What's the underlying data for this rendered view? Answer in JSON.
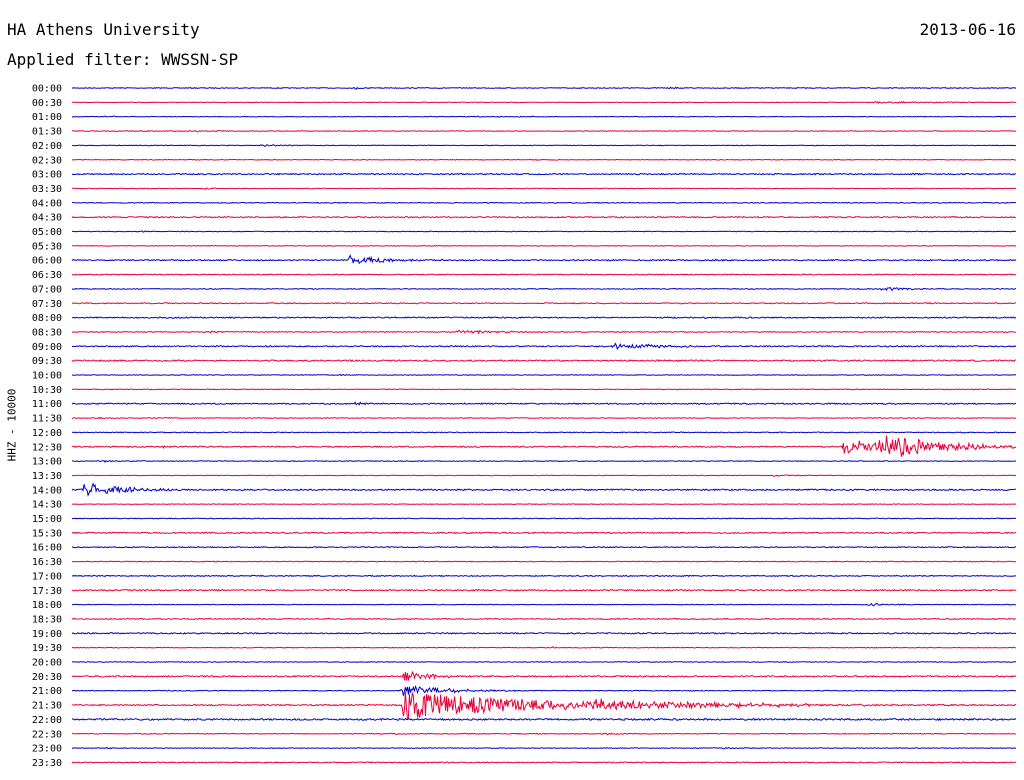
{
  "header": {
    "station": "HA Athens University",
    "date": "2013-06-16",
    "filter_label": "Applied filter: WWSSN-SP",
    "channel": "HHZ - 10000"
  },
  "colors": {
    "even_row": "#0000cc",
    "odd_row": "#e8003a"
  },
  "chart_data": {
    "type": "line",
    "title": "HA Athens University",
    "date": "2013-06-16",
    "filter": "WWSSN-SP",
    "ylabel": "HHZ - 10000",
    "row_minutes": 30,
    "minutes_per_row_span": [
      0,
      30
    ],
    "grid": false,
    "rows": [
      {
        "label": "00:00",
        "color": "blue",
        "noise": 0.4,
        "events": [
          {
            "t": 9.0,
            "amp": 1.2,
            "dur": 0.4
          },
          {
            "t": 19.0,
            "amp": 0.8,
            "dur": 0.3
          },
          {
            "t": 19.5,
            "amp": 0.7,
            "dur": 0.2
          }
        ]
      },
      {
        "label": "00:30",
        "color": "red",
        "noise": 0.3,
        "events": [
          {
            "t": 25.5,
            "amp": 0.9,
            "dur": 1.8
          }
        ]
      },
      {
        "label": "01:00",
        "color": "blue",
        "noise": 0.3,
        "events": [
          {
            "t": 1.0,
            "amp": 1.2,
            "dur": 0.4
          },
          {
            "t": 12.5,
            "amp": 0.6,
            "dur": 1.5
          }
        ]
      },
      {
        "label": "01:30",
        "color": "red",
        "noise": 0.3,
        "events": [
          {
            "t": 1.0,
            "amp": 0.6,
            "dur": 1.5
          },
          {
            "t": 3.8,
            "amp": 0.6,
            "dur": 1.0
          }
        ]
      },
      {
        "label": "02:00",
        "color": "blue",
        "noise": 0.3,
        "events": [
          {
            "t": 6.0,
            "amp": 1.0,
            "dur": 0.8
          }
        ]
      },
      {
        "label": "02:30",
        "color": "red",
        "noise": 0.35,
        "events": [
          {
            "t": 14.5,
            "amp": 0.6,
            "dur": 0.8
          }
        ]
      },
      {
        "label": "03:00",
        "color": "blue",
        "noise": 0.6,
        "events": []
      },
      {
        "label": "03:30",
        "color": "red",
        "noise": 0.3,
        "events": [
          {
            "t": 4.2,
            "amp": 1.0,
            "dur": 0.3
          }
        ]
      },
      {
        "label": "04:00",
        "color": "blue",
        "noise": 0.4,
        "events": []
      },
      {
        "label": "04:30",
        "color": "red",
        "noise": 0.6,
        "events": []
      },
      {
        "label": "05:00",
        "color": "blue",
        "noise": 0.3,
        "events": [
          {
            "t": 2.2,
            "amp": 1.0,
            "dur": 0.3
          },
          {
            "t": 11.3,
            "amp": 0.8,
            "dur": 0.2
          }
        ]
      },
      {
        "label": "05:30",
        "color": "red",
        "noise": 0.3,
        "events": [
          {
            "t": 4.3,
            "amp": 0.6,
            "dur": 0.4
          }
        ]
      },
      {
        "label": "06:00",
        "color": "blue",
        "noise": 0.6,
        "events": [
          {
            "t": 8.8,
            "amp": 5.5,
            "dur": 1.0
          },
          {
            "t": 20.3,
            "amp": 0.9,
            "dur": 0.4
          }
        ]
      },
      {
        "label": "06:30",
        "color": "red",
        "noise": 0.45,
        "events": []
      },
      {
        "label": "07:00",
        "color": "blue",
        "noise": 0.4,
        "events": [
          {
            "t": 7.6,
            "amp": 0.8,
            "dur": 0.2
          },
          {
            "t": 25.7,
            "amp": 1.5,
            "dur": 1.2
          }
        ]
      },
      {
        "label": "07:30",
        "color": "red",
        "noise": 0.5,
        "events": []
      },
      {
        "label": "08:00",
        "color": "blue",
        "noise": 0.6,
        "events": []
      },
      {
        "label": "08:30",
        "color": "red",
        "noise": 0.4,
        "events": [
          {
            "t": 4.2,
            "amp": 1.8,
            "dur": 0.5
          },
          {
            "t": 12.2,
            "amp": 2.0,
            "dur": 1.5
          },
          {
            "t": 0.2,
            "amp": 0.8,
            "dur": 0.3
          },
          {
            "t": 29.5,
            "amp": 0.8,
            "dur": 0.3
          }
        ]
      },
      {
        "label": "09:00",
        "color": "blue",
        "noise": 0.6,
        "events": [
          {
            "t": 17.2,
            "amp": 3.5,
            "dur": 1.2
          }
        ]
      },
      {
        "label": "09:30",
        "color": "red",
        "noise": 0.7,
        "events": []
      },
      {
        "label": "10:00",
        "color": "blue",
        "noise": 0.3,
        "events": [
          {
            "t": 8.5,
            "amp": 0.7,
            "dur": 0.3
          }
        ]
      },
      {
        "label": "10:30",
        "color": "red",
        "noise": 0.35,
        "events": []
      },
      {
        "label": "11:00",
        "color": "blue",
        "noise": 0.6,
        "events": [
          {
            "t": 9.0,
            "amp": 1.2,
            "dur": 0.6
          }
        ]
      },
      {
        "label": "11:30",
        "color": "red",
        "noise": 0.3,
        "events": [
          {
            "t": 0.8,
            "amp": 0.7,
            "dur": 0.4
          },
          {
            "t": 3.0,
            "amp": 0.7,
            "dur": 0.2
          }
        ]
      },
      {
        "label": "12:00",
        "color": "blue",
        "noise": 0.4,
        "events": []
      },
      {
        "label": "12:30",
        "color": "red",
        "noise": 0.6,
        "events": [
          {
            "t": 24.5,
            "amp": 9.0,
            "dur": 1.4
          },
          {
            "t": 25.7,
            "amp": 13.0,
            "dur": 1.8
          },
          {
            "t": 2.9,
            "amp": 0.8,
            "dur": 0.2
          },
          {
            "t": 29.2,
            "amp": 0.8,
            "dur": 0.3
          }
        ]
      },
      {
        "label": "13:00",
        "color": "blue",
        "noise": 0.35,
        "events": [
          {
            "t": 0.8,
            "amp": 1.0,
            "dur": 0.8
          }
        ]
      },
      {
        "label": "13:30",
        "color": "red",
        "noise": 0.3,
        "events": [
          {
            "t": 22.3,
            "amp": 0.9,
            "dur": 0.8
          }
        ]
      },
      {
        "label": "14:00",
        "color": "blue",
        "noise": 0.7,
        "events": [
          {
            "t": 0.3,
            "amp": 8.0,
            "dur": 1.0
          },
          {
            "t": 1.7,
            "amp": 2.0,
            "dur": 0.6
          }
        ]
      },
      {
        "label": "14:30",
        "color": "red",
        "noise": 0.3,
        "events": []
      },
      {
        "label": "15:00",
        "color": "blue",
        "noise": 0.4,
        "events": []
      },
      {
        "label": "15:30",
        "color": "red",
        "noise": 0.6,
        "events": []
      },
      {
        "label": "16:00",
        "color": "blue",
        "noise": 0.5,
        "events": []
      },
      {
        "label": "16:30",
        "color": "red",
        "noise": 0.4,
        "events": []
      },
      {
        "label": "17:00",
        "color": "blue",
        "noise": 0.5,
        "events": []
      },
      {
        "label": "17:30",
        "color": "red",
        "noise": 0.7,
        "events": []
      },
      {
        "label": "18:00",
        "color": "blue",
        "noise": 0.3,
        "events": [
          {
            "t": 25.3,
            "amp": 1.6,
            "dur": 0.6
          }
        ]
      },
      {
        "label": "18:30",
        "color": "red",
        "noise": 0.5,
        "events": []
      },
      {
        "label": "19:00",
        "color": "blue",
        "noise": 0.6,
        "events": []
      },
      {
        "label": "19:30",
        "color": "red",
        "noise": 0.35,
        "events": [
          {
            "t": 15.2,
            "amp": 1.0,
            "dur": 0.3
          }
        ]
      },
      {
        "label": "20:00",
        "color": "blue",
        "noise": 0.3,
        "events": []
      },
      {
        "label": "20:30",
        "color": "red",
        "noise": 0.7,
        "events": [
          {
            "t": 10.5,
            "amp": 6.0,
            "dur": 0.8
          }
        ]
      },
      {
        "label": "21:00",
        "color": "blue",
        "noise": 0.4,
        "events": [
          {
            "t": 10.5,
            "amp": 6.5,
            "dur": 1.2
          }
        ]
      },
      {
        "label": "21:30",
        "color": "red",
        "noise": 0.6,
        "events": [
          {
            "t": 10.5,
            "amp": 15.0,
            "dur": 4.0
          },
          {
            "t": 16.5,
            "amp": 4.0,
            "dur": 4.0
          },
          {
            "t": 19.5,
            "amp": 2.0,
            "dur": 3.0
          }
        ]
      },
      {
        "label": "22:00",
        "color": "blue",
        "noise": 0.8,
        "events": []
      },
      {
        "label": "22:30",
        "color": "red",
        "noise": 0.4,
        "events": [
          {
            "t": 10.0,
            "amp": 1.0,
            "dur": 0.3
          },
          {
            "t": 16.8,
            "amp": 0.9,
            "dur": 0.5
          }
        ]
      },
      {
        "label": "23:00",
        "color": "blue",
        "noise": 0.3,
        "events": [
          {
            "t": 1.1,
            "amp": 0.8,
            "dur": 0.3
          },
          {
            "t": 20.7,
            "amp": 1.0,
            "dur": 0.6
          }
        ]
      },
      {
        "label": "23:30",
        "color": "red",
        "noise": 0.5,
        "events": []
      }
    ]
  }
}
